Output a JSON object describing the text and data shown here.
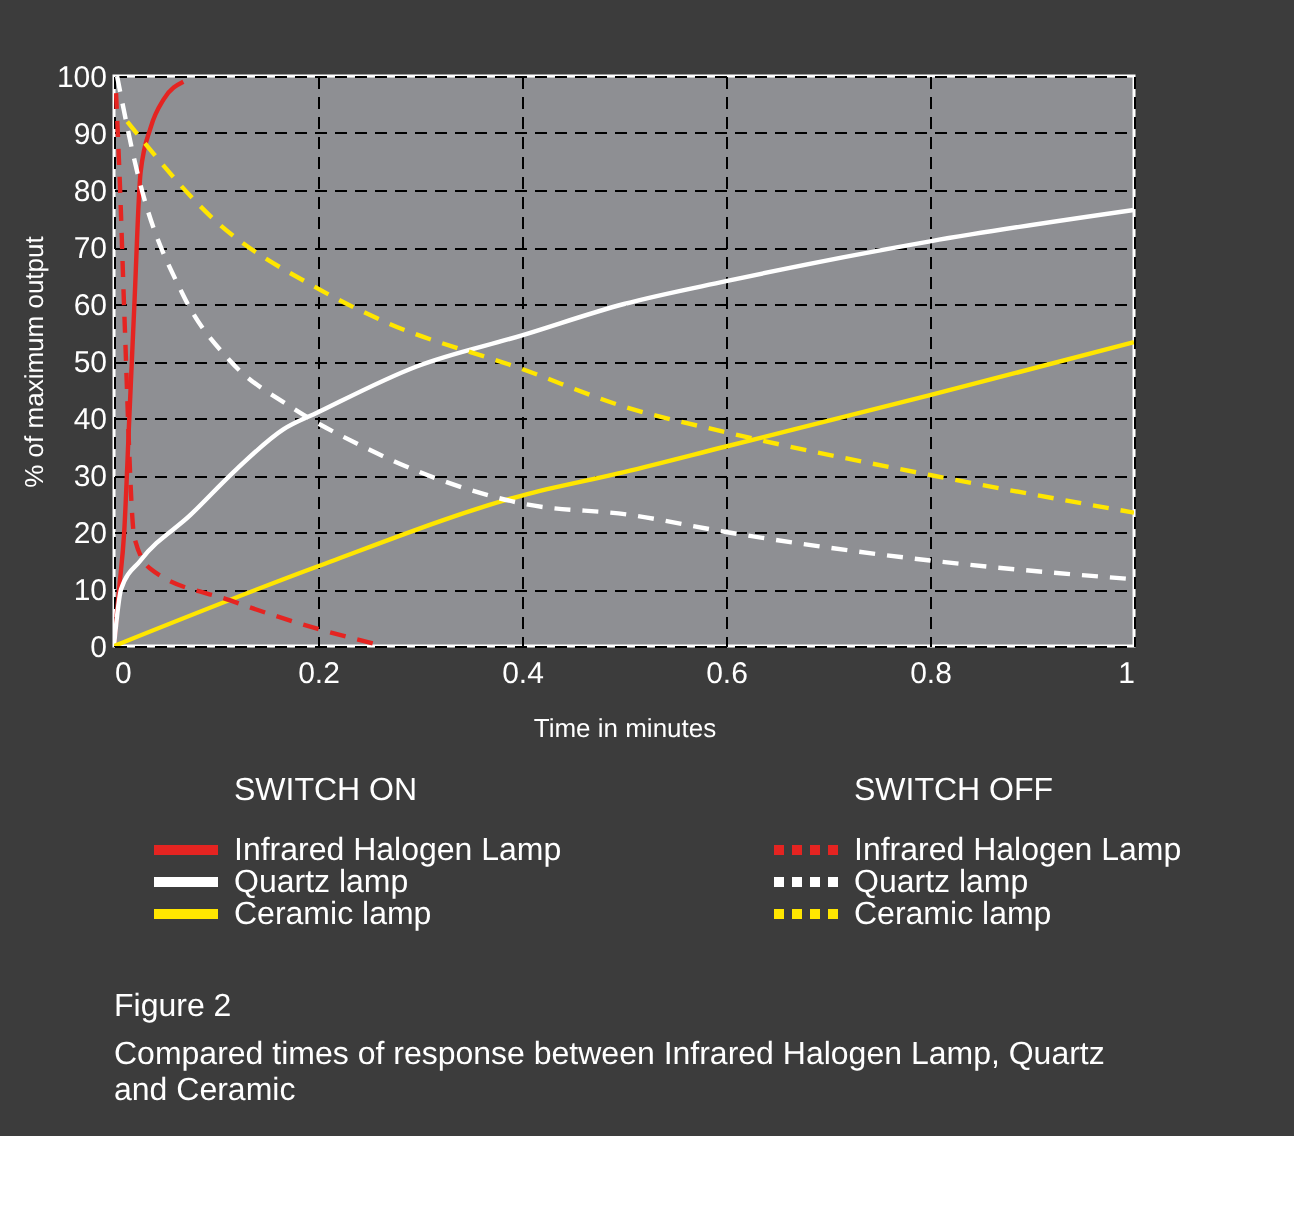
{
  "chart_data": {
    "type": "line",
    "xlabel": "Time in minutes",
    "ylabel": "% of maximum output",
    "xlim": [
      0,
      1
    ],
    "ylim": [
      0,
      100
    ],
    "xticks": [
      0,
      0.2,
      0.4,
      0.6,
      0.8,
      1
    ],
    "yticks": [
      0,
      10,
      20,
      30,
      40,
      50,
      60,
      70,
      80,
      90,
      100
    ],
    "grid": true,
    "legend": "bottom",
    "annotations": [
      "SWITCH ON",
      "SWITCH OFF",
      "Figure 2",
      "Compared times of response between Infrared Halogen Lamp, Quartz and Ceramic"
    ],
    "series": [
      {
        "name": "Infrared Halogen Lamp",
        "color": "#e52421",
        "line_style": "solid",
        "x": [
          0,
          0.005,
          0.01,
          0.015,
          0.02,
          0.026,
          0.036,
          0.049,
          0.068
        ],
        "values": [
          0,
          10,
          20,
          40,
          60,
          83,
          91,
          96,
          99
        ]
      },
      {
        "name": "Quartz lamp",
        "color": "#ffffff",
        "line_style": "solid",
        "x": [
          0,
          0.007,
          0.026,
          0.075,
          0.12,
          0.166,
          0.2,
          0.296,
          0.4,
          0.5,
          0.6,
          0.8,
          1
        ],
        "values": [
          0,
          10,
          15,
          23,
          31,
          38,
          41,
          49,
          54.5,
          60,
          64,
          71,
          76.5
        ]
      },
      {
        "name": "Ceramic lamp",
        "color": "#ffe600",
        "line_style": "solid",
        "x": [
          0,
          0.2,
          0.4,
          0.5,
          0.6,
          0.8,
          1
        ],
        "values": [
          0,
          14,
          26.4,
          30.5,
          35,
          44,
          53.3
        ]
      },
      {
        "name": "Infrared Halogen Lamp",
        "color": "#e52421",
        "line_style": "dashed",
        "x": [
          0.002,
          0.006,
          0.01,
          0.02,
          0.036,
          0.114,
          0.2,
          0.264
        ],
        "values": [
          97,
          80,
          59,
          19,
          13.5,
          8,
          3,
          0
        ]
      },
      {
        "name": "Quartz lamp",
        "color": "#ffffff",
        "line_style": "dashed",
        "x": [
          0.003,
          0.023,
          0.068,
          0.114,
          0.173,
          0.244,
          0.322,
          0.4,
          0.506,
          0.6,
          0.8,
          1
        ],
        "values": [
          100,
          83,
          61.5,
          50,
          42,
          35,
          29,
          25,
          23,
          20,
          15,
          11.7
        ]
      },
      {
        "name": "Ceramic lamp",
        "color": "#ffe600",
        "line_style": "dashed",
        "x": [
          0.013,
          0.1,
          0.2,
          0.264,
          0.4,
          0.5,
          0.6,
          0.8,
          1
        ],
        "values": [
          92,
          74.5,
          62.7,
          57,
          48.6,
          42,
          37.5,
          30,
          23.4
        ]
      }
    ]
  }
}
